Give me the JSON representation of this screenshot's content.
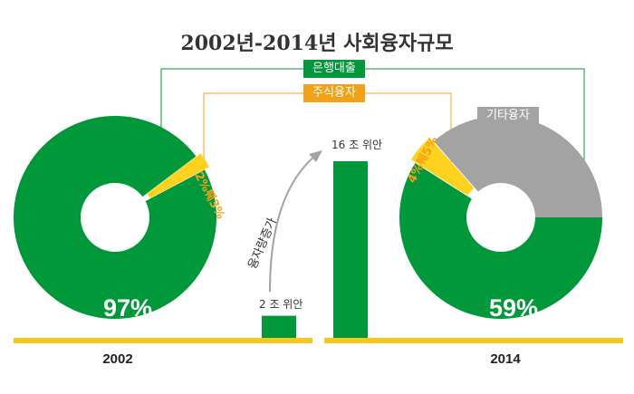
{
  "title": "2002년-2014년 사회융자규모",
  "legend": {
    "bank_loans": "은행대출",
    "equity_financing": "주식융자",
    "other_financing": "기타융자"
  },
  "growth_label": "융자량증가",
  "colors": {
    "bank_loans": "#00983a",
    "equity_financing": "#ffd21f",
    "other_financing": "#a3a3a3",
    "equity_tag": "#f4a11a",
    "baseline": "#f7c81a"
  },
  "chart_data": [
    {
      "type": "pie",
      "year": "2002",
      "slices": [
        {
          "name": "은행대출",
          "value": 97,
          "label": "97%"
        },
        {
          "name": "주식융자",
          "value": 2.5,
          "label": "2%퉤3%"
        }
      ]
    },
    {
      "type": "pie",
      "year": "2014",
      "slices": [
        {
          "name": "은행대출",
          "value": 59,
          "label": "59%"
        },
        {
          "name": "주식융자",
          "value": 4.5,
          "label": "4%퉤5%"
        },
        {
          "name": "기타융자",
          "value": 36.5,
          "label": "기타융자"
        }
      ]
    },
    {
      "type": "bar",
      "categories": [
        "2002",
        "2014"
      ],
      "values": [
        2,
        16
      ],
      "value_labels": [
        "2 조 위안",
        "16 조 위안"
      ],
      "ylabel": "조 위안"
    }
  ]
}
